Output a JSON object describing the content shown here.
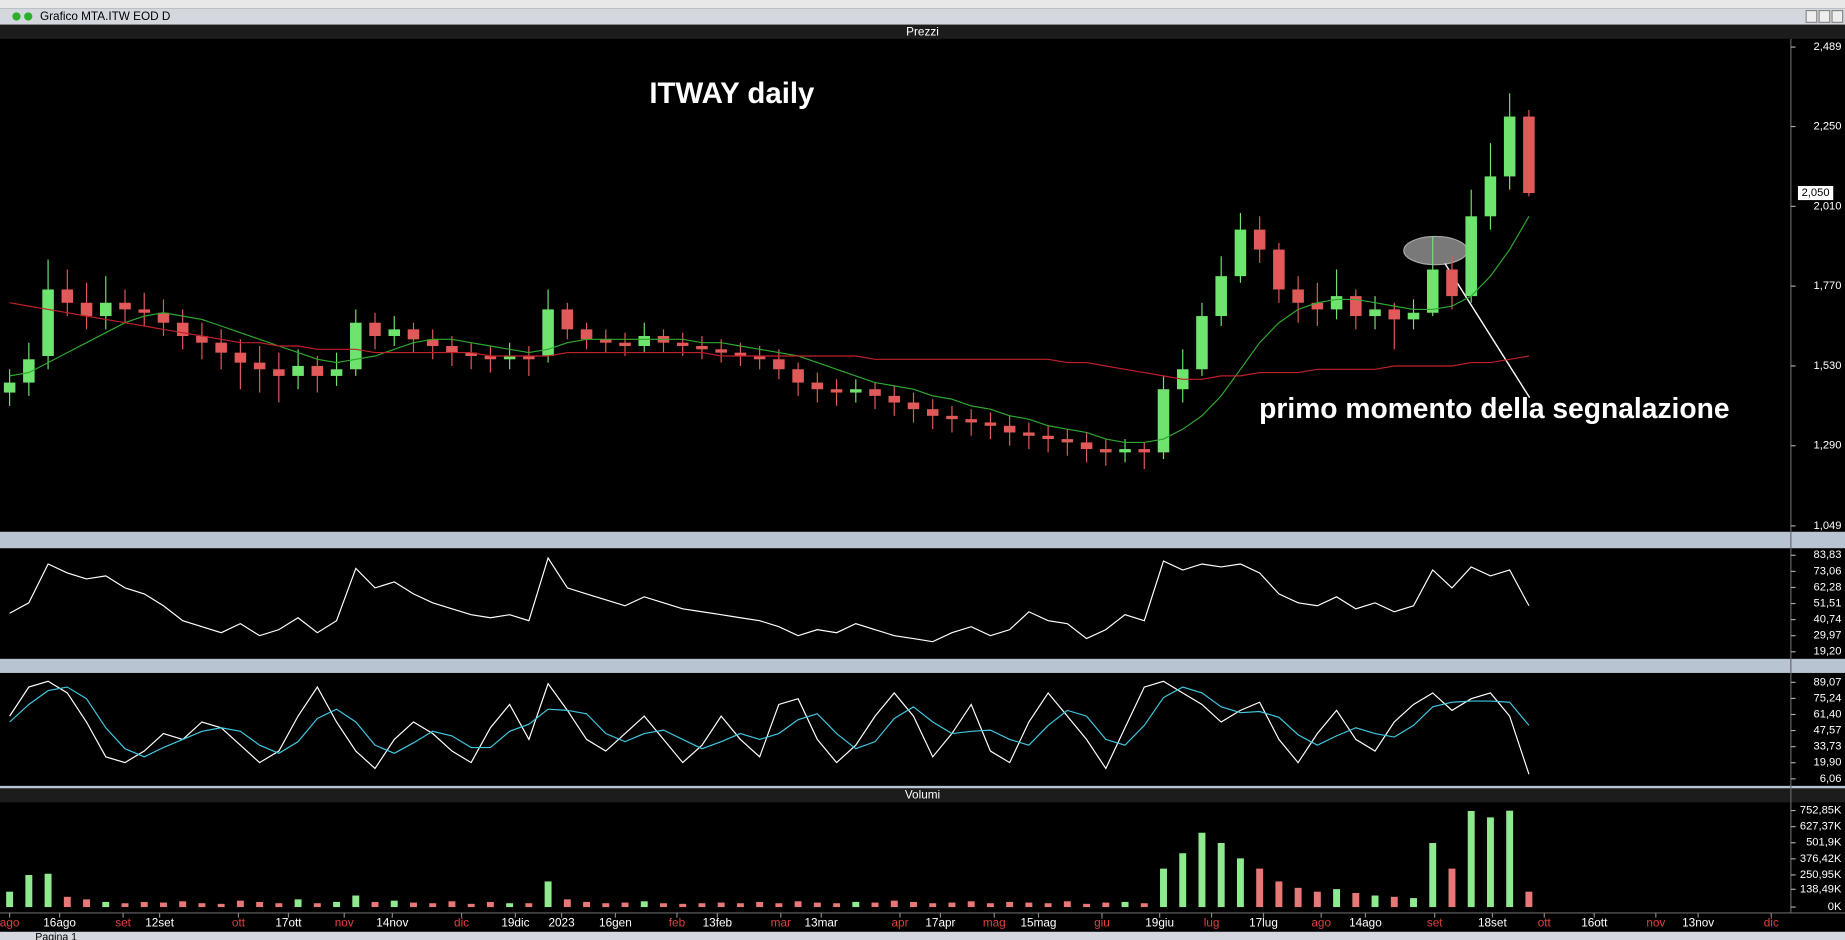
{
  "window": {
    "title": "Grafico MTA.ITW EOD D",
    "tab": "Pagina 1"
  },
  "chart_data": [
    {
      "type": "candlestick",
      "panel_title": "Prezzi",
      "title": "ITWAY daily",
      "annotation": "primo momento della segnalazione",
      "up_color": "#6ee36e",
      "down_color": "#e05a5a",
      "open": [
        1.45,
        1.48,
        1.56,
        1.76,
        1.72,
        1.68,
        1.72,
        1.7,
        1.69,
        1.66,
        1.62,
        1.6,
        1.57,
        1.54,
        1.52,
        1.5,
        1.53,
        1.5,
        1.52,
        1.66,
        1.62,
        1.64,
        1.61,
        1.59,
        1.57,
        1.56,
        1.55,
        1.56,
        1.56,
        1.7,
        1.64,
        1.61,
        1.6,
        1.59,
        1.62,
        1.6,
        1.59,
        1.58,
        1.57,
        1.56,
        1.55,
        1.52,
        1.48,
        1.46,
        1.45,
        1.46,
        1.44,
        1.42,
        1.4,
        1.38,
        1.37,
        1.36,
        1.35,
        1.33,
        1.32,
        1.31,
        1.3,
        1.28,
        1.27,
        1.28,
        1.27,
        1.46,
        1.52,
        1.68,
        1.8,
        1.94,
        1.88,
        1.76,
        1.72,
        1.7,
        1.74,
        1.68,
        1.7,
        1.67,
        1.69,
        1.82,
        1.74,
        1.98,
        2.1,
        2.28
      ],
      "high": [
        1.52,
        1.6,
        1.85,
        1.82,
        1.78,
        1.8,
        1.76,
        1.75,
        1.73,
        1.7,
        1.66,
        1.64,
        1.61,
        1.59,
        1.57,
        1.58,
        1.56,
        1.57,
        1.7,
        1.69,
        1.68,
        1.66,
        1.64,
        1.62,
        1.6,
        1.59,
        1.6,
        1.59,
        1.76,
        1.72,
        1.66,
        1.64,
        1.63,
        1.66,
        1.64,
        1.63,
        1.62,
        1.61,
        1.6,
        1.59,
        1.58,
        1.54,
        1.51,
        1.49,
        1.49,
        1.48,
        1.47,
        1.45,
        1.43,
        1.41,
        1.4,
        1.39,
        1.38,
        1.36,
        1.35,
        1.34,
        1.33,
        1.31,
        1.31,
        1.3,
        1.5,
        1.58,
        1.72,
        1.86,
        1.99,
        1.98,
        1.9,
        1.8,
        1.78,
        1.82,
        1.76,
        1.74,
        1.72,
        1.73,
        1.92,
        1.86,
        2.06,
        2.2,
        2.35,
        2.3
      ],
      "low": [
        1.41,
        1.44,
        1.52,
        1.68,
        1.64,
        1.64,
        1.66,
        1.65,
        1.62,
        1.58,
        1.55,
        1.52,
        1.46,
        1.45,
        1.42,
        1.46,
        1.45,
        1.47,
        1.5,
        1.58,
        1.59,
        1.57,
        1.55,
        1.53,
        1.52,
        1.51,
        1.52,
        1.5,
        1.54,
        1.61,
        1.58,
        1.57,
        1.56,
        1.57,
        1.57,
        1.56,
        1.55,
        1.54,
        1.53,
        1.52,
        1.49,
        1.44,
        1.42,
        1.41,
        1.42,
        1.4,
        1.38,
        1.36,
        1.34,
        1.33,
        1.32,
        1.31,
        1.29,
        1.28,
        1.27,
        1.26,
        1.24,
        1.23,
        1.24,
        1.22,
        1.25,
        1.42,
        1.5,
        1.65,
        1.78,
        1.84,
        1.72,
        1.66,
        1.65,
        1.67,
        1.64,
        1.64,
        1.58,
        1.64,
        1.68,
        1.7,
        1.72,
        1.94,
        2.06,
        2.04
      ],
      "close": [
        1.48,
        1.55,
        1.76,
        1.72,
        1.68,
        1.72,
        1.7,
        1.69,
        1.66,
        1.62,
        1.6,
        1.57,
        1.54,
        1.52,
        1.5,
        1.53,
        1.5,
        1.52,
        1.66,
        1.62,
        1.64,
        1.61,
        1.59,
        1.57,
        1.56,
        1.55,
        1.56,
        1.55,
        1.7,
        1.64,
        1.61,
        1.6,
        1.59,
        1.62,
        1.6,
        1.59,
        1.58,
        1.57,
        1.56,
        1.55,
        1.52,
        1.48,
        1.46,
        1.45,
        1.46,
        1.44,
        1.42,
        1.4,
        1.38,
        1.37,
        1.36,
        1.35,
        1.33,
        1.32,
        1.31,
        1.3,
        1.28,
        1.27,
        1.28,
        1.27,
        1.46,
        1.52,
        1.68,
        1.8,
        1.94,
        1.88,
        1.76,
        1.72,
        1.7,
        1.74,
        1.68,
        1.7,
        1.67,
        1.69,
        1.82,
        1.74,
        1.98,
        2.1,
        2.28,
        2.05
      ],
      "series": [
        {
          "color": "#2fa82f",
          "values": [
            1.5,
            1.51,
            1.54,
            1.57,
            1.6,
            1.63,
            1.66,
            1.68,
            1.69,
            1.68,
            1.67,
            1.65,
            1.63,
            1.61,
            1.59,
            1.57,
            1.55,
            1.54,
            1.55,
            1.56,
            1.58,
            1.6,
            1.61,
            1.61,
            1.6,
            1.59,
            1.58,
            1.57,
            1.58,
            1.6,
            1.61,
            1.61,
            1.61,
            1.61,
            1.61,
            1.61,
            1.6,
            1.6,
            1.59,
            1.58,
            1.57,
            1.56,
            1.54,
            1.52,
            1.5,
            1.48,
            1.47,
            1.46,
            1.44,
            1.43,
            1.41,
            1.4,
            1.38,
            1.37,
            1.35,
            1.34,
            1.33,
            1.31,
            1.3,
            1.3,
            1.31,
            1.34,
            1.38,
            1.44,
            1.52,
            1.6,
            1.66,
            1.7,
            1.72,
            1.73,
            1.73,
            1.72,
            1.71,
            1.7,
            1.7,
            1.71,
            1.74,
            1.8,
            1.88,
            1.98
          ]
        },
        {
          "color": "#c0202a",
          "values": [
            1.72,
            1.71,
            1.7,
            1.69,
            1.68,
            1.67,
            1.66,
            1.65,
            1.64,
            1.63,
            1.62,
            1.61,
            1.6,
            1.6,
            1.59,
            1.59,
            1.58,
            1.58,
            1.58,
            1.57,
            1.57,
            1.57,
            1.57,
            1.57,
            1.57,
            1.56,
            1.56,
            1.56,
            1.56,
            1.57,
            1.57,
            1.57,
            1.57,
            1.57,
            1.57,
            1.57,
            1.57,
            1.56,
            1.56,
            1.56,
            1.56,
            1.56,
            1.56,
            1.56,
            1.56,
            1.55,
            1.55,
            1.55,
            1.55,
            1.55,
            1.55,
            1.55,
            1.55,
            1.55,
            1.55,
            1.54,
            1.54,
            1.53,
            1.52,
            1.51,
            1.5,
            1.49,
            1.49,
            1.5,
            1.5,
            1.51,
            1.51,
            1.51,
            1.52,
            1.52,
            1.52,
            1.52,
            1.53,
            1.53,
            1.53,
            1.53,
            1.54,
            1.54,
            1.55,
            1.56
          ]
        }
      ],
      "last_price": {
        "value": 2.05,
        "label": "2,050"
      },
      "ylim": [
        1.049,
        2.489
      ],
      "yticks": [
        {
          "value": 2.489,
          "label": "2,489"
        },
        {
          "value": 2.25,
          "label": "2,250"
        },
        {
          "value": 2.01,
          "label": "2,010"
        },
        {
          "value": 1.77,
          "label": "1,770"
        },
        {
          "value": 1.53,
          "label": "1,530"
        },
        {
          "value": 1.29,
          "label": "1,290"
        },
        {
          "value": 1.049,
          "label": "1,049"
        }
      ]
    },
    {
      "type": "line",
      "series": [
        {
          "color": "#ffffff",
          "values": [
            45,
            52,
            78,
            72,
            68,
            70,
            62,
            58,
            50,
            40,
            36,
            32,
            38,
            30,
            34,
            42,
            32,
            40,
            75,
            62,
            66,
            58,
            52,
            48,
            44,
            42,
            44,
            40,
            82,
            62,
            58,
            54,
            50,
            56,
            52,
            48,
            46,
            44,
            42,
            40,
            36,
            30,
            34,
            32,
            38,
            34,
            30,
            28,
            26,
            32,
            36,
            30,
            34,
            46,
            40,
            38,
            28,
            34,
            44,
            40,
            80,
            74,
            78,
            76,
            78,
            72,
            58,
            52,
            50,
            56,
            48,
            52,
            46,
            50,
            74,
            62,
            76,
            70,
            74,
            50
          ]
        }
      ],
      "ylim": [
        19.2,
        83.83
      ],
      "yticks": [
        {
          "value": 83.83,
          "label": "83,83"
        },
        {
          "value": 73.06,
          "label": "73,06"
        },
        {
          "value": 62.28,
          "label": "62,28"
        },
        {
          "value": 51.51,
          "label": "51,51"
        },
        {
          "value": 40.74,
          "label": "40,74"
        },
        {
          "value": 29.97,
          "label": "29,97"
        },
        {
          "value": 19.2,
          "label": "19,20"
        }
      ]
    },
    {
      "type": "line",
      "series": [
        {
          "color": "#ffffff",
          "values": [
            60,
            85,
            90,
            80,
            55,
            25,
            20,
            30,
            45,
            40,
            55,
            50,
            35,
            20,
            30,
            60,
            85,
            55,
            30,
            15,
            40,
            55,
            45,
            30,
            20,
            50,
            70,
            40,
            88,
            65,
            40,
            30,
            45,
            60,
            40,
            20,
            35,
            60,
            40,
            25,
            70,
            75,
            40,
            20,
            35,
            60,
            80,
            60,
            25,
            45,
            70,
            30,
            20,
            55,
            80,
            60,
            40,
            15,
            50,
            85,
            90,
            80,
            70,
            55,
            65,
            72,
            40,
            20,
            45,
            65,
            40,
            30,
            55,
            70,
            80,
            65,
            75,
            80,
            60,
            10
          ]
        },
        {
          "color": "#40c8e0",
          "values": [
            55,
            70,
            82,
            85,
            75,
            50,
            32,
            25,
            33,
            40,
            47,
            50,
            47,
            35,
            28,
            38,
            58,
            66,
            55,
            35,
            28,
            37,
            47,
            43,
            33,
            33,
            47,
            53,
            66,
            65,
            62,
            45,
            38,
            45,
            48,
            40,
            32,
            38,
            45,
            40,
            45,
            57,
            62,
            45,
            32,
            38,
            58,
            68,
            55,
            45,
            47,
            48,
            40,
            35,
            52,
            65,
            60,
            40,
            35,
            52,
            76,
            85,
            80,
            68,
            63,
            64,
            59,
            44,
            35,
            43,
            50,
            45,
            42,
            52,
            68,
            72,
            73,
            73,
            72,
            52
          ]
        }
      ],
      "ylim": [
        6.06,
        89.07
      ],
      "yticks": [
        {
          "value": 89.07,
          "label": "89,07"
        },
        {
          "value": 75.24,
          "label": "75,24"
        },
        {
          "value": 61.4,
          "label": "61,40"
        },
        {
          "value": 47.57,
          "label": "47,57"
        },
        {
          "value": 33.73,
          "label": "33,73"
        },
        {
          "value": 19.9,
          "label": "19,90"
        },
        {
          "value": 6.06,
          "label": "6,06"
        }
      ]
    },
    {
      "type": "bar",
      "panel_title": "Volumi",
      "up_color": "#8fea8f",
      "down_color": "#e87878",
      "values": [
        120,
        250,
        260,
        80,
        60,
        40,
        30,
        40,
        35,
        45,
        30,
        25,
        50,
        40,
        30,
        60,
        30,
        40,
        90,
        40,
        50,
        35,
        30,
        45,
        25,
        40,
        30,
        30,
        200,
        60,
        40,
        30,
        35,
        45,
        30,
        25,
        30,
        35,
        30,
        40,
        30,
        45,
        35,
        30,
        40,
        35,
        50,
        40,
        30,
        35,
        45,
        30,
        40,
        35,
        30,
        45,
        25,
        35,
        40,
        30,
        300,
        420,
        580,
        500,
        380,
        300,
        200,
        150,
        120,
        140,
        110,
        90,
        80,
        70,
        500,
        300,
        750,
        700,
        752,
        120
      ],
      "ylim": [
        0,
        752.85
      ],
      "yticks": [
        {
          "value": 752.85,
          "label": "752,85K"
        },
        {
          "value": 627.37,
          "label": "627,37K"
        },
        {
          "value": 501.9,
          "label": "501,9K"
        },
        {
          "value": 376.42,
          "label": "376,42K"
        },
        {
          "value": 250.95,
          "label": "250,95K"
        },
        {
          "value": 138.49,
          "label": "138,49K"
        },
        {
          "value": 0,
          "label": "0K"
        }
      ],
      "xlim": [
        -0.5,
        92.5
      ],
      "month_tick_color": "#e04040",
      "month_ticks": [
        {
          "value": 0.0,
          "label": "ago"
        },
        {
          "value": 5.9,
          "label": "set"
        },
        {
          "value": 11.9,
          "label": "ott"
        },
        {
          "value": 17.4,
          "label": "nov"
        },
        {
          "value": 23.5,
          "label": "dic"
        },
        {
          "value": 34.7,
          "label": "feb"
        },
        {
          "value": 40.1,
          "label": "mar"
        },
        {
          "value": 46.3,
          "label": "apr"
        },
        {
          "value": 51.2,
          "label": "mag"
        },
        {
          "value": 56.8,
          "label": "giu"
        },
        {
          "value": 62.5,
          "label": "lug"
        },
        {
          "value": 68.2,
          "label": "ago"
        },
        {
          "value": 74.1,
          "label": "set"
        },
        {
          "value": 79.8,
          "label": "ott"
        },
        {
          "value": 85.6,
          "label": "nov"
        },
        {
          "value": 91.6,
          "label": "dic"
        }
      ],
      "xticks": [
        {
          "value": 2.6,
          "label": "16ago"
        },
        {
          "value": 7.8,
          "label": "12set"
        },
        {
          "value": 14.5,
          "label": "17ott"
        },
        {
          "value": 19.9,
          "label": "14nov"
        },
        {
          "value": 26.3,
          "label": "19dic"
        },
        {
          "value": 28.7,
          "label": "2023"
        },
        {
          "value": 31.5,
          "label": "16gen"
        },
        {
          "value": 36.8,
          "label": "13feb"
        },
        {
          "value": 42.2,
          "label": "13mar"
        },
        {
          "value": 48.4,
          "label": "17apr"
        },
        {
          "value": 53.5,
          "label": "15mag"
        },
        {
          "value": 59.8,
          "label": "19giu"
        },
        {
          "value": 65.2,
          "label": "17lug"
        },
        {
          "value": 70.5,
          "label": "14ago"
        },
        {
          "value": 77.1,
          "label": "18set"
        },
        {
          "value": 82.4,
          "label": "16ott"
        },
        {
          "value": 87.8,
          "label": "13nov"
        }
      ]
    }
  ]
}
